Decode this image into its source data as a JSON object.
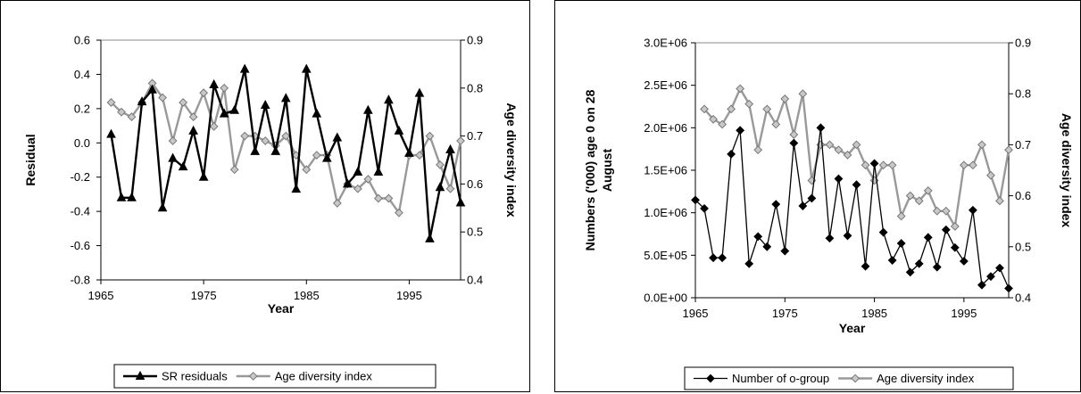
{
  "chart_data": [
    {
      "type": "line",
      "xlabel": "Year",
      "ylabel": "Residual",
      "y2label": "Age diversity index",
      "xlim": [
        1965,
        2000
      ],
      "ylim": [
        -0.8,
        0.6
      ],
      "y2lim": [
        0.4,
        0.9
      ],
      "xticks": [
        "1965",
        "1975",
        "1985",
        "1995"
      ],
      "yticks": [
        "-0.8",
        "-0.6",
        "-0.4",
        "-0.2",
        "0.0",
        "0.2",
        "0.4",
        "0.6"
      ],
      "y2ticks": [
        "0.4",
        "0.5",
        "0.6",
        "0.7",
        "0.8",
        "0.9"
      ],
      "legend_position": "bottom",
      "series": [
        {
          "name": "SR residuals",
          "axis": "left",
          "color": "#000000",
          "marker": "triangle",
          "width": 2.4,
          "x": [
            1966,
            1967,
            1968,
            1969,
            1970,
            1971,
            1972,
            1973,
            1974,
            1975,
            1976,
            1977,
            1978,
            1979,
            1980,
            1981,
            1982,
            1983,
            1984,
            1985,
            1986,
            1987,
            1988,
            1989,
            1990,
            1991,
            1992,
            1993,
            1994,
            1995,
            1996,
            1997,
            1998,
            1999,
            2000
          ],
          "values": [
            0.05,
            -0.32,
            -0.32,
            0.24,
            0.31,
            -0.38,
            -0.09,
            -0.14,
            0.07,
            -0.2,
            0.34,
            0.17,
            0.19,
            0.43,
            -0.05,
            0.22,
            -0.05,
            0.26,
            -0.27,
            0.43,
            0.17,
            -0.09,
            0.03,
            -0.24,
            -0.17,
            0.19,
            -0.17,
            0.25,
            0.07,
            -0.06,
            0.29,
            -0.56,
            -0.26,
            -0.04,
            -0.35
          ]
        },
        {
          "name": "Age diversity index",
          "axis": "right",
          "color": "#999999",
          "marker": "diamond",
          "width": 2.4,
          "x": [
            1966,
            1967,
            1968,
            1969,
            1970,
            1971,
            1972,
            1973,
            1974,
            1975,
            1976,
            1977,
            1978,
            1979,
            1980,
            1981,
            1982,
            1983,
            1984,
            1985,
            1986,
            1987,
            1988,
            1989,
            1990,
            1991,
            1992,
            1993,
            1994,
            1995,
            1996,
            1997,
            1998,
            1999,
            2000
          ],
          "values": [
            0.77,
            0.75,
            0.74,
            0.77,
            0.81,
            0.78,
            0.69,
            0.77,
            0.74,
            0.79,
            0.72,
            0.8,
            0.63,
            0.7,
            0.7,
            0.69,
            0.68,
            0.7,
            0.66,
            0.63,
            0.66,
            0.66,
            0.56,
            0.6,
            0.59,
            0.61,
            0.57,
            0.57,
            0.54,
            0.66,
            0.66,
            0.7,
            0.64,
            0.59,
            0.69
          ]
        }
      ]
    },
    {
      "type": "line",
      "xlabel": "Year",
      "ylabel": "Numbers ('000) age 0 on 28 August",
      "ylabel_lines": [
        "Numbers ('000) age 0 on 28",
        "August"
      ],
      "y2label": "Age diversity index",
      "xlim": [
        1965,
        2000
      ],
      "ylim": [
        0,
        3000000
      ],
      "y2lim": [
        0.4,
        0.9
      ],
      "xticks": [
        "1965",
        "1975",
        "1985",
        "1995"
      ],
      "yticks": [
        "0.0E+00",
        "5.0E+05",
        "1.0E+06",
        "1.5E+06",
        "2.0E+06",
        "2.5E+06",
        "3.0E+06"
      ],
      "y2ticks": [
        "0.4",
        "0.5",
        "0.6",
        "0.7",
        "0.8",
        "0.9"
      ],
      "legend_position": "bottom",
      "series": [
        {
          "name": "Number of o-group",
          "axis": "left",
          "color": "#000000",
          "marker": "diamond",
          "width": 1.3,
          "x": [
            1965,
            1966,
            1967,
            1968,
            1969,
            1970,
            1971,
            1972,
            1973,
            1974,
            1975,
            1976,
            1977,
            1978,
            1979,
            1980,
            1981,
            1982,
            1983,
            1984,
            1985,
            1986,
            1987,
            1988,
            1989,
            1990,
            1991,
            1992,
            1993,
            1994,
            1995,
            1996,
            1997,
            1998,
            1999,
            2000
          ],
          "values": [
            1150000,
            1050000,
            470000,
            470000,
            1690000,
            1970000,
            400000,
            720000,
            600000,
            1100000,
            550000,
            1820000,
            1080000,
            1170000,
            2000000,
            700000,
            1400000,
            730000,
            1330000,
            370000,
            1580000,
            770000,
            440000,
            640000,
            300000,
            400000,
            710000,
            360000,
            800000,
            590000,
            430000,
            1030000,
            150000,
            250000,
            350000,
            110000
          ]
        },
        {
          "name": "Age diversity index",
          "axis": "right",
          "color": "#999999",
          "marker": "diamond",
          "width": 2.4,
          "x": [
            1966,
            1967,
            1968,
            1969,
            1970,
            1971,
            1972,
            1973,
            1974,
            1975,
            1976,
            1977,
            1978,
            1979,
            1980,
            1981,
            1982,
            1983,
            1984,
            1985,
            1986,
            1987,
            1988,
            1989,
            1990,
            1991,
            1992,
            1993,
            1994,
            1995,
            1996,
            1997,
            1998,
            1999,
            2000
          ],
          "values": [
            0.77,
            0.75,
            0.74,
            0.77,
            0.81,
            0.78,
            0.69,
            0.77,
            0.74,
            0.79,
            0.72,
            0.8,
            0.63,
            0.7,
            0.7,
            0.69,
            0.68,
            0.7,
            0.66,
            0.63,
            0.66,
            0.66,
            0.56,
            0.6,
            0.59,
            0.61,
            0.57,
            0.57,
            0.54,
            0.66,
            0.66,
            0.7,
            0.64,
            0.59,
            0.69
          ]
        }
      ]
    }
  ]
}
